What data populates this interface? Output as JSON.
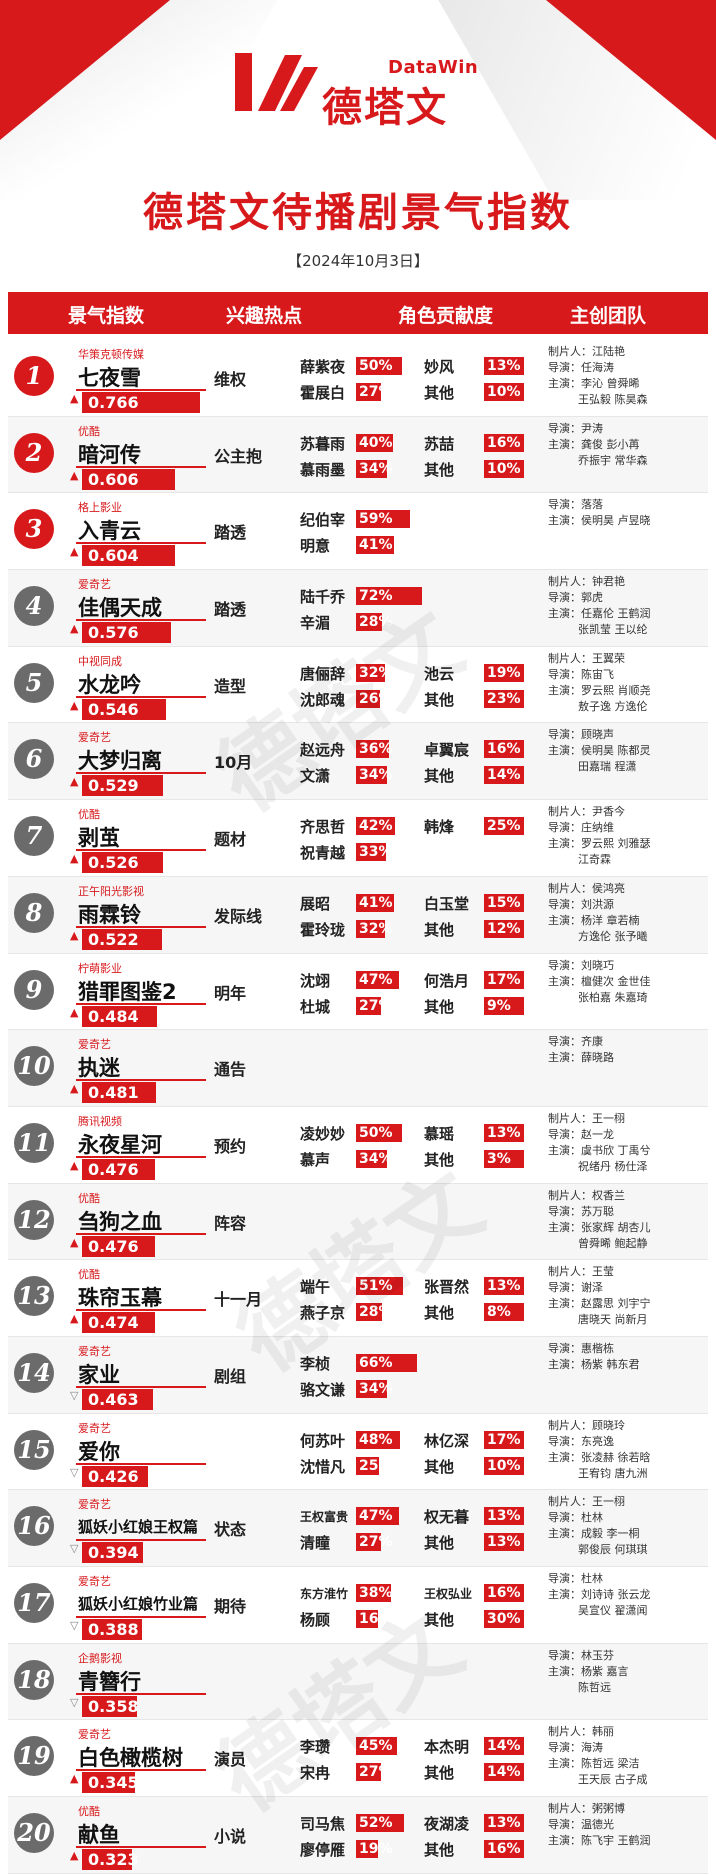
{
  "brand": {
    "name_en": "DataWin",
    "name_cn": "德塔文"
  },
  "title": "德塔文待播剧景气指数",
  "date": "【2024年10月3日】",
  "columns": [
    "景气指数",
    "兴趣热点",
    "角色贡献度",
    "主创团队"
  ],
  "watermark": "德塔文",
  "colors": {
    "accent": "#d7191c",
    "rank_gray": "#6b6b6b"
  },
  "rows": [
    {
      "rank": "1",
      "platform": "华策克顿传媒",
      "title": "七夜雪",
      "score": "0.766",
      "trend": "up",
      "hot": "维权",
      "roles": [
        [
          "薛紫夜",
          "50%"
        ],
        [
          "妙风",
          "13%"
        ],
        [
          "霍展白",
          "27%"
        ],
        [
          "其他",
          "10%"
        ]
      ],
      "team": [
        "制片人：江陆艳",
        "导演：任海涛",
        "主演：李沁 曾舜晞",
        "王弘毅 陈昊森"
      ]
    },
    {
      "rank": "2",
      "platform": "优酷",
      "title": "暗河传",
      "score": "0.606",
      "trend": "up",
      "hot": "公主抱",
      "roles": [
        [
          "苏暮雨",
          "40%"
        ],
        [
          "苏喆",
          "16%"
        ],
        [
          "慕雨墨",
          "34%"
        ],
        [
          "其他",
          "10%"
        ]
      ],
      "team": [
        "导演：尹涛",
        "主演：龚俊 彭小苒",
        "乔振宇 常华森"
      ]
    },
    {
      "rank": "3",
      "platform": "格上影业",
      "title": "入青云",
      "score": "0.604",
      "trend": "up",
      "hot": "踏透",
      "roles": [
        [
          "纪伯宰",
          "59%"
        ],
        [
          "",
          ""
        ],
        [
          "明意",
          "41%"
        ],
        [
          "",
          ""
        ]
      ],
      "team": [
        "导演：落落",
        "主演：侯明昊 卢昱晓"
      ]
    },
    {
      "rank": "4",
      "platform": "爱奇艺",
      "title": "佳偶天成",
      "score": "0.576",
      "trend": "up",
      "hot": "踏透",
      "roles": [
        [
          "陆千乔",
          "72%"
        ],
        [
          "",
          ""
        ],
        [
          "辛湄",
          "28%"
        ],
        [
          "",
          ""
        ]
      ],
      "team": [
        "制片人：钟君艳",
        "导演：郭虎",
        "主演：任嘉伦 王鹤润",
        "张凯莹 王以纶"
      ]
    },
    {
      "rank": "5",
      "platform": "中视同成",
      "title": "水龙吟",
      "score": "0.546",
      "trend": "up",
      "hot": "造型",
      "roles": [
        [
          "唐俪辞",
          "32%"
        ],
        [
          "池云",
          "19%"
        ],
        [
          "沈郎魂",
          "26%"
        ],
        [
          "其他",
          "23%"
        ]
      ],
      "team": [
        "制片人：王翼荣",
        "导演：陈宙飞",
        "主演：罗云熙 肖顺尧",
        "敖子逸 方逸伦"
      ]
    },
    {
      "rank": "6",
      "platform": "爱奇艺",
      "title": "大梦归离",
      "score": "0.529",
      "trend": "up",
      "hot": "10月",
      "roles": [
        [
          "赵远舟",
          "36%"
        ],
        [
          "卓翼宸",
          "16%"
        ],
        [
          "文潇",
          "34%"
        ],
        [
          "其他",
          "14%"
        ]
      ],
      "team": [
        "导演：顾晓声",
        "主演：侯明昊 陈都灵",
        "田嘉瑞 程潇"
      ]
    },
    {
      "rank": "7",
      "platform": "优酷",
      "title": "剥茧",
      "score": "0.526",
      "trend": "up",
      "hot": "题材",
      "roles": [
        [
          "齐思哲",
          "42%"
        ],
        [
          "韩烽",
          "25%"
        ],
        [
          "祝青越",
          "33%"
        ],
        [
          "",
          ""
        ]
      ],
      "team": [
        "制片人：尹香今",
        "导演：庄纳维",
        "主演：罗云熙 刘雅瑟",
        "江奇霖"
      ]
    },
    {
      "rank": "8",
      "platform": "正午阳光影视",
      "title": "雨霖铃",
      "score": "0.522",
      "trend": "up",
      "hot": "发际线",
      "roles": [
        [
          "展昭",
          "41%"
        ],
        [
          "白玉堂",
          "15%"
        ],
        [
          "霍玲珑",
          "32%"
        ],
        [
          "其他",
          "12%"
        ]
      ],
      "team": [
        "制片人：侯鸿亮",
        "导演：刘洪源",
        "主演：杨洋 章若楠",
        "方逸伦 张予曦"
      ]
    },
    {
      "rank": "9",
      "platform": "柠萌影业",
      "title": "猎罪图鉴2",
      "score": "0.484",
      "trend": "up",
      "hot": "明年",
      "roles": [
        [
          "沈翊",
          "47%"
        ],
        [
          "何浩月",
          "17%"
        ],
        [
          "杜城",
          "27%"
        ],
        [
          "其他",
          "9%"
        ]
      ],
      "team": [
        "导演：刘晓巧",
        "主演：檀健次 金世佳",
        "张柏嘉 朱嘉琦"
      ]
    },
    {
      "rank": "10",
      "platform": "爱奇艺",
      "title": "执迷",
      "score": "0.481",
      "trend": "up",
      "hot": "通告",
      "roles": [
        [
          "",
          ""
        ],
        [
          "",
          ""
        ],
        [
          "",
          ""
        ],
        [
          "",
          ""
        ]
      ],
      "team": [
        "导演：齐康",
        "主演：薛晓路"
      ]
    },
    {
      "rank": "11",
      "platform": "腾讯视频",
      "title": "永夜星河",
      "score": "0.476",
      "trend": "up",
      "hot": "预约",
      "roles": [
        [
          "凌妙妙",
          "50%"
        ],
        [
          "慕瑶",
          "13%"
        ],
        [
          "慕声",
          "34%"
        ],
        [
          "其他",
          "3%"
        ]
      ],
      "team": [
        "制片人：王一栩",
        "导演：赵一龙",
        "主演：虞书欣 丁禹兮",
        "祝绪丹 杨仕泽"
      ]
    },
    {
      "rank": "12",
      "platform": "优酷",
      "title": "刍狗之血",
      "score": "0.476",
      "trend": "up",
      "hot": "阵容",
      "roles": [
        [
          "",
          ""
        ],
        [
          "",
          ""
        ],
        [
          "",
          ""
        ],
        [
          "",
          ""
        ]
      ],
      "team": [
        "制片人：权香兰",
        "导演：苏万聪",
        "主演：张家辉 胡杏儿",
        "曾舜晞 鲍起静"
      ]
    },
    {
      "rank": "13",
      "platform": "优酷",
      "title": "珠帘玉幕",
      "score": "0.474",
      "trend": "up",
      "hot": "十一月",
      "roles": [
        [
          "端午",
          "51%"
        ],
        [
          "张晋然",
          "13%"
        ],
        [
          "燕子京",
          "28%"
        ],
        [
          "其他",
          "8%"
        ]
      ],
      "team": [
        "制片人：王莹",
        "导演：谢泽",
        "主演：赵露思 刘宇宁",
        "唐晓天 尚新月"
      ]
    },
    {
      "rank": "14",
      "platform": "爱奇艺",
      "title": "家业",
      "score": "0.463",
      "trend": "down",
      "hot": "剧组",
      "roles": [
        [
          "李桢",
          "66%"
        ],
        [
          "",
          ""
        ],
        [
          "骆文谦",
          "34%"
        ],
        [
          "",
          ""
        ]
      ],
      "team": [
        "导演：惠楷栋",
        "主演：杨紫 韩东君"
      ]
    },
    {
      "rank": "15",
      "platform": "爱奇艺",
      "title": "爱你",
      "score": "0.426",
      "trend": "down",
      "hot": "",
      "roles": [
        [
          "何苏叶",
          "48%"
        ],
        [
          "林亿深",
          "17%"
        ],
        [
          "沈惜凡",
          "25%"
        ],
        [
          "其他",
          "10%"
        ]
      ],
      "team": [
        "制片人：顾晓玲",
        "导演：东亮逸",
        "主演：张凌赫 徐若晗",
        "王宥钧 唐九洲"
      ]
    },
    {
      "rank": "16",
      "platform": "爱奇艺",
      "title": "狐妖小红娘王权篇",
      "score": "0.394",
      "trend": "down",
      "hot": "状态",
      "roles": [
        [
          "王权富贵",
          "47%"
        ],
        [
          "权无暮",
          "13%"
        ],
        [
          "清瞳",
          "27%"
        ],
        [
          "其他",
          "13%"
        ]
      ],
      "team": [
        "制片人：王一栩",
        "导演：杜林",
        "主演：成毅 李一桐",
        "郭俊辰 何琪琪"
      ]
    },
    {
      "rank": "17",
      "platform": "爱奇艺",
      "title": "狐妖小红娘竹业篇",
      "score": "0.388",
      "trend": "down",
      "hot": "期待",
      "roles": [
        [
          "东方淮竹",
          "38%"
        ],
        [
          "王权弘业",
          "16%"
        ],
        [
          "杨顾",
          "16%"
        ],
        [
          "其他",
          "30%"
        ]
      ],
      "team": [
        "导演：杜林",
        "主演：刘诗诗 张云龙",
        "吴宣仪 翟潇闻"
      ]
    },
    {
      "rank": "18",
      "platform": "企鹅影视",
      "title": "青簪行",
      "score": "0.358",
      "trend": "down",
      "hot": "",
      "roles": [
        [
          "",
          ""
        ],
        [
          "",
          ""
        ],
        [
          "",
          ""
        ],
        [
          "",
          ""
        ]
      ],
      "team": [
        "导演：林玉芬",
        "主演：杨紫 嘉言",
        "陈哲远"
      ]
    },
    {
      "rank": "19",
      "platform": "爱奇艺",
      "title": "白色橄榄树",
      "score": "0.345",
      "trend": "up",
      "hot": "演员",
      "roles": [
        [
          "李瓒",
          "45%"
        ],
        [
          "本杰明",
          "14%"
        ],
        [
          "宋冉",
          "27%"
        ],
        [
          "其他",
          "14%"
        ]
      ],
      "team": [
        "制片人：韩丽",
        "导演：海涛",
        "主演：陈哲远 梁洁",
        "王天辰 古子成"
      ]
    },
    {
      "rank": "20",
      "platform": "优酷",
      "title": "献鱼",
      "score": "0.323",
      "trend": "up",
      "hot": "小说",
      "roles": [
        [
          "司马焦",
          "52%"
        ],
        [
          "夜湖凌",
          "13%"
        ],
        [
          "廖停雁",
          "19%"
        ],
        [
          "其他",
          "16%"
        ]
      ],
      "team": [
        "制片人：粥粥博",
        "导演：温德光",
        "主演：陈飞宇 王鹤润"
      ]
    }
  ]
}
